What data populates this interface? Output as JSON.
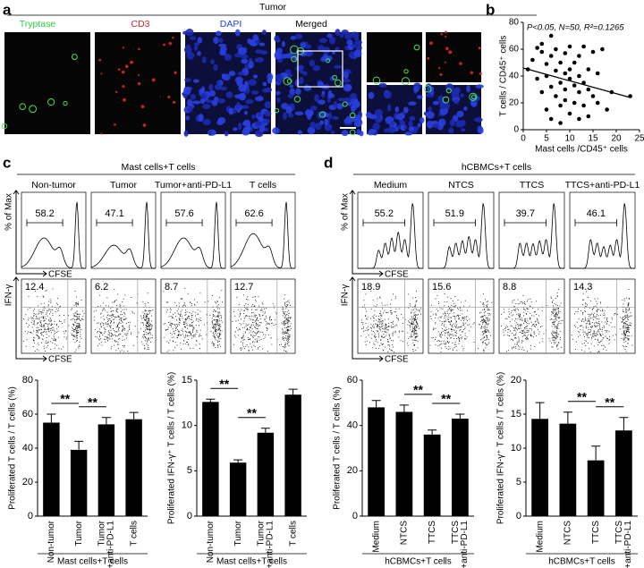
{
  "panel_labels": [
    "a",
    "b",
    "c",
    "d"
  ],
  "panel_a": {
    "title": "Tumor",
    "channels": [
      "Tryptase",
      "CD3",
      "DAPI",
      "Merged"
    ]
  },
  "panel_c": {
    "group": "Mast cells+T cells",
    "conditions": [
      "Non-tumor",
      "Tumor",
      "Tumor+anti-PD-L1",
      "T cells"
    ],
    "histogram_gates": [
      "58.2",
      "47.1",
      "57.6",
      "62.6"
    ],
    "dotplot_gates": [
      "12.4",
      "6.2",
      "8.7",
      "12.7"
    ]
  },
  "panel_d": {
    "group": "hCBMCs+T cells",
    "conditions": [
      "Medium",
      "NTCS",
      "TTCS",
      "TTCS+anti-PD-L1"
    ],
    "histogram_gates": [
      "55.2",
      "51.9",
      "39.7",
      "46.1"
    ],
    "dotplot_gates": [
      "18.9",
      "15.6",
      "8.8",
      "14.3"
    ]
  },
  "flow_axes": {
    "histogram_y": "% of Max",
    "x": "CFSE",
    "dotplot_y": "IFN-γ"
  },
  "chart_data": [
    {
      "type": "scatter",
      "annotation": "P<0.05, N=50, R²=0.1265",
      "x_label": "Mast cells /CD45⁺ cells",
      "y_label": "T cells / CD45⁺ cells",
      "x": [
        1,
        2,
        3,
        3,
        4,
        4,
        4,
        5,
        5,
        5,
        6,
        6,
        6,
        6,
        7,
        7,
        7,
        8,
        8,
        8,
        8,
        9,
        9,
        9,
        9,
        10,
        10,
        10,
        10,
        11,
        11,
        11,
        12,
        12,
        12,
        12,
        13,
        13,
        13,
        14,
        14,
        14,
        15,
        15,
        16,
        16,
        17,
        18,
        19,
        23
      ],
      "y": [
        45,
        52,
        61,
        38,
        64,
        58,
        28,
        15,
        40,
        49,
        70,
        55,
        32,
        8,
        44,
        60,
        25,
        35,
        50,
        18,
        5,
        42,
        30,
        22,
        57,
        38,
        12,
        62,
        45,
        33,
        20,
        50,
        28,
        55,
        40,
        8,
        35,
        18,
        62,
        30,
        45,
        10,
        58,
        25,
        20,
        42,
        60,
        15,
        28,
        25
      ],
      "fit": {
        "x": [
          0,
          23
        ],
        "y": [
          46,
          24
        ]
      },
      "xlim": [
        0,
        25
      ],
      "xticks": [
        0,
        5,
        10,
        15,
        20,
        25
      ],
      "ylim": [
        0,
        80
      ],
      "yticks": [
        0,
        20,
        40,
        60,
        80
      ],
      "color": "#000000"
    },
    {
      "type": "bar",
      "categories": [
        [
          "Non-tumor"
        ],
        [
          "Tumor"
        ],
        [
          "Tumor",
          "+anti-PD-L1"
        ],
        [
          "T cells"
        ]
      ],
      "values": [
        55,
        39,
        54,
        57
      ],
      "errors": [
        5,
        5,
        4,
        4
      ],
      "y_label": "Proliferated T cells / T cells (%)",
      "x_label": "Mast cells+T cells",
      "significance": [
        "**",
        "**"
      ],
      "ylim": [
        0,
        80
      ],
      "yticks": [
        0,
        20,
        40,
        60,
        80
      ],
      "color": "#000000"
    },
    {
      "type": "bar",
      "categories": [
        [
          "Non-tumor"
        ],
        [
          "Tumor"
        ],
        [
          "Tumor",
          "+anti-PD-L1"
        ],
        [
          "T cells"
        ]
      ],
      "values": [
        12.6,
        5.9,
        9.2,
        13.4
      ],
      "errors": [
        0.3,
        0.3,
        0.5,
        0.6
      ],
      "y_label": "Proliferated IFN-γ⁺ T cells / T cells (%)",
      "x_label": "Mast cells+T cells",
      "significance": [
        "**",
        "**"
      ],
      "ylim": [
        0,
        15
      ],
      "yticks": [
        0,
        5,
        10,
        15
      ],
      "color": "#000000"
    },
    {
      "type": "bar",
      "categories": [
        [
          "Medium"
        ],
        [
          "NTCS"
        ],
        [
          "TTCS"
        ],
        [
          "TTCS",
          "+anti-PD-L1"
        ]
      ],
      "values": [
        48,
        46,
        36,
        43
      ],
      "errors": [
        3,
        3,
        2,
        2
      ],
      "y_label": "Proliferated T cells / T cells (%)",
      "x_label": "hCBMCs+T cells",
      "significance": [
        "**",
        "**"
      ],
      "ylim": [
        0,
        60
      ],
      "yticks": [
        0,
        20,
        40,
        60
      ],
      "color": "#000000"
    },
    {
      "type": "bar",
      "categories": [
        [
          "Medium"
        ],
        [
          "NTCS"
        ],
        [
          "TTCS"
        ],
        [
          "TTCS",
          "+anti-PD-L1"
        ]
      ],
      "values": [
        14.3,
        13.6,
        8.2,
        12.6
      ],
      "errors": [
        2.4,
        1.7,
        2.1,
        1.9
      ],
      "y_label": "Proliferated IFN-γ⁺ T cells / T cells (%)",
      "x_label": "hCBMCs+T cells",
      "significance": [
        "**",
        "**"
      ],
      "ylim": [
        0,
        20
      ],
      "yticks": [
        0,
        5,
        10,
        15,
        20
      ],
      "color": "#000000"
    }
  ]
}
